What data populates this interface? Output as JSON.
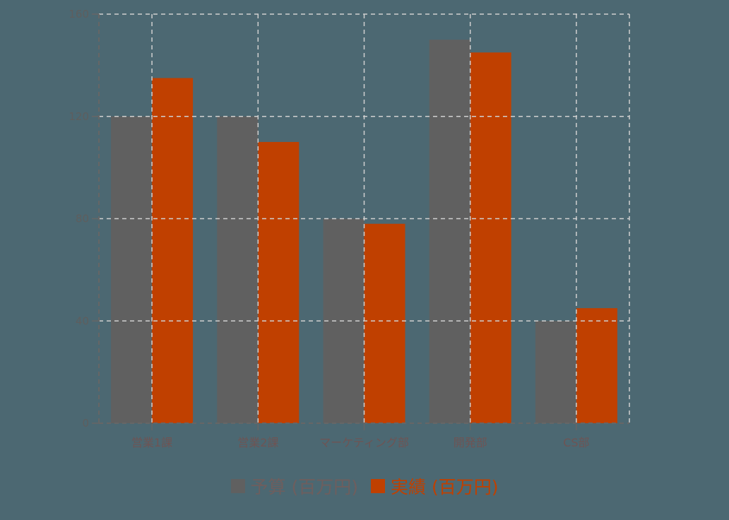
{
  "chart_data": {
    "type": "bar",
    "title": "",
    "xlabel": "",
    "ylabel": "",
    "categories": [
      "営業1課",
      "営業2課",
      "マーケティング部",
      "開発部",
      "CS部"
    ],
    "series": [
      {
        "name": "予算 (百万円)",
        "color": "#606060",
        "values": [
          120,
          120,
          80,
          150,
          40
        ]
      },
      {
        "name": "実績 (百万円)",
        "color": "#c04000",
        "values": [
          135,
          110,
          78,
          145,
          45
        ]
      }
    ],
    "ylim": [
      0,
      160
    ],
    "yticks": [
      0,
      40,
      80,
      120,
      160
    ],
    "grid": true,
    "legend_position": "bottom"
  },
  "legend": {
    "items": [
      {
        "label": "予算 (百万円)",
        "color": "#606060",
        "text_color": "#6e5e5e"
      },
      {
        "label": "実績 (百万円)",
        "color": "#c04000",
        "text_color": "#c04000"
      }
    ]
  },
  "colors": {
    "background": "#4c6872",
    "grid": "#d0d0d0",
    "axis": "#666666"
  }
}
